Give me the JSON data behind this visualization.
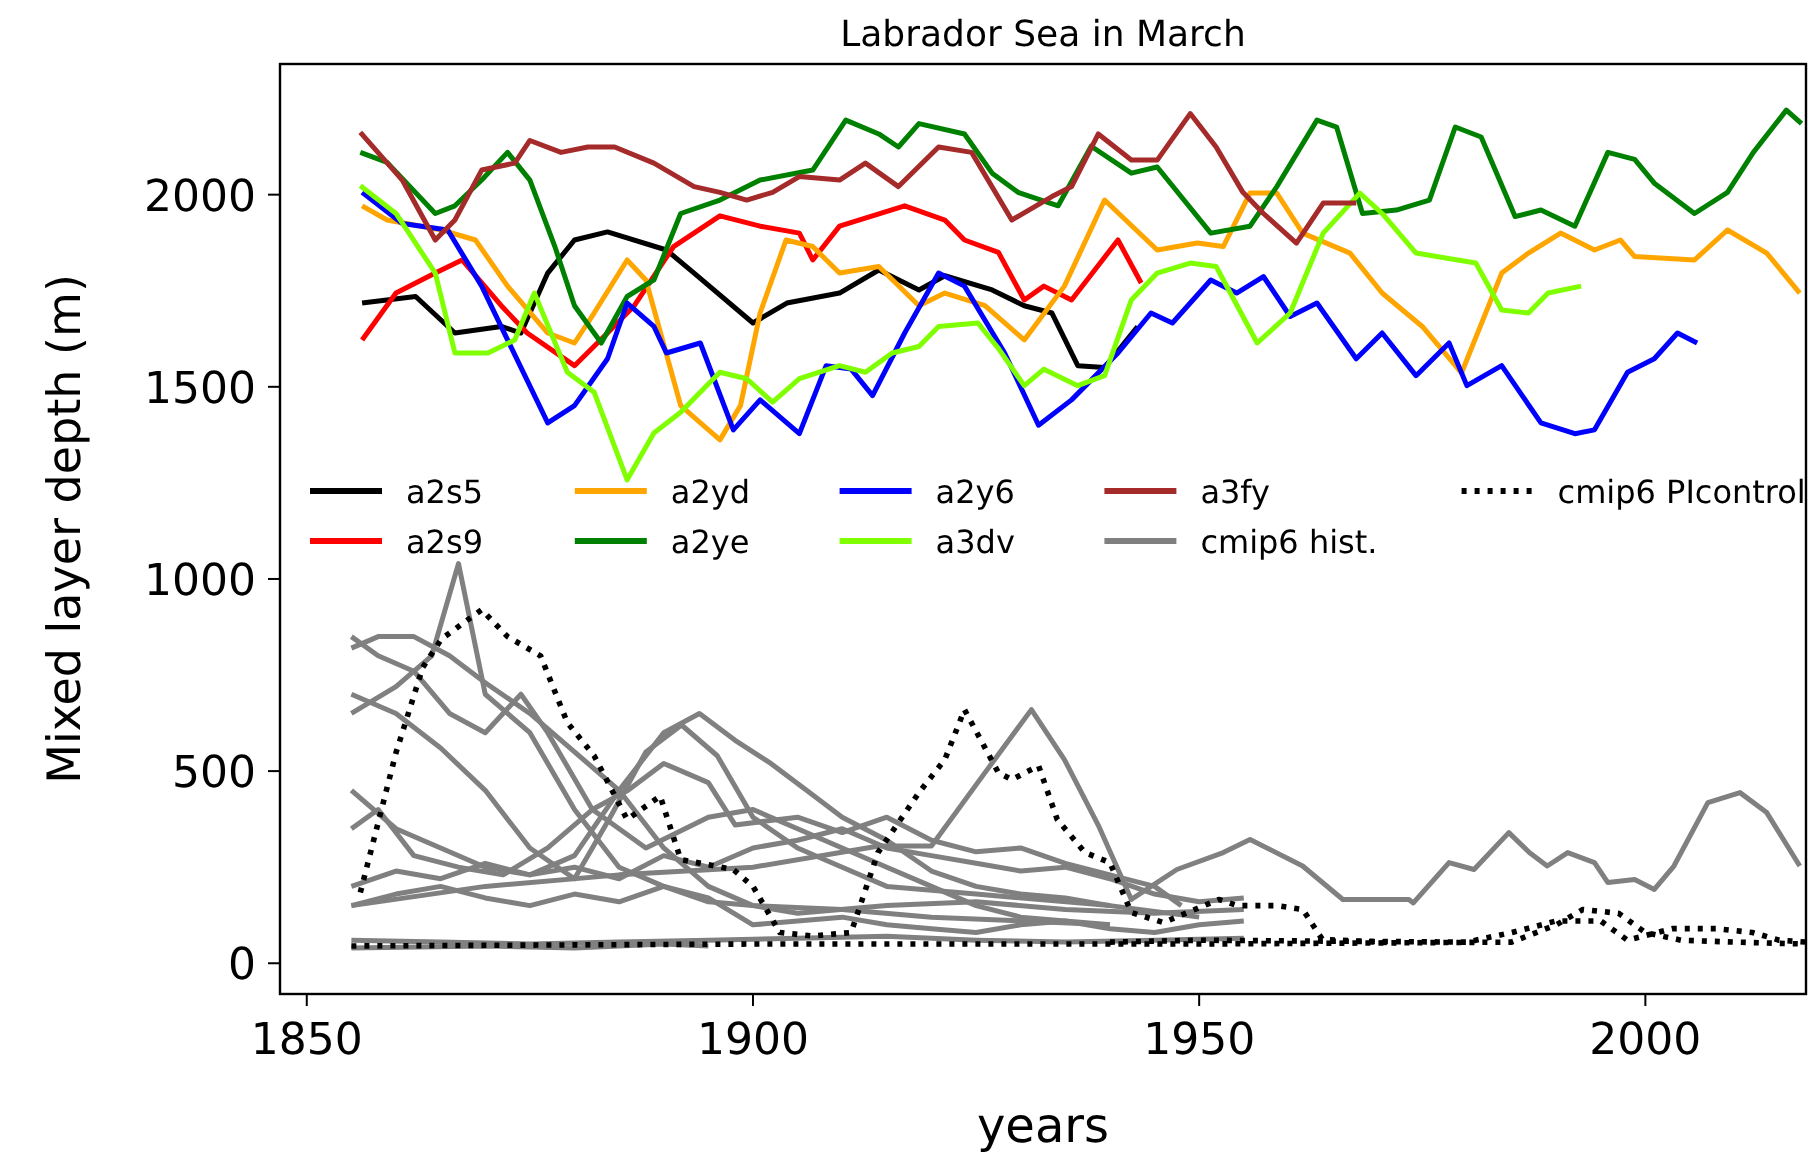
{
  "chart_data": {
    "type": "line",
    "title": "Labrador Sea in March",
    "xlabel": "years",
    "ylabel": "Mixed layer depth (m)",
    "xlim": [
      1847,
      2018
    ],
    "ylim": [
      -80,
      2340
    ],
    "xticks": [
      1850,
      1900,
      1950,
      2000
    ],
    "yticks": [
      0,
      500,
      1000,
      1500,
      2000
    ],
    "legend": "center left",
    "series": [
      {
        "name": "a2s5",
        "color": "#000000",
        "line_style": "solid",
        "x": [
          1856.2,
          1862.2,
          1866.6,
          1871.8,
          1874,
          1877,
          1880,
          1883.7,
          1890.3,
          1893.4,
          1900,
          1903.8,
          1909.7,
          1914.1,
          1918.6,
          1921.5,
          1926.8,
          1930.4,
          1933.5,
          1936.4,
          1939.4,
          1943.1
        ],
        "values": [
          1718,
          1735,
          1640,
          1657,
          1640,
          1796,
          1882,
          1903,
          1856,
          1796,
          1666,
          1718,
          1744,
          1804,
          1752,
          1789,
          1752,
          1711,
          1692,
          1555,
          1550,
          1657
        ]
      },
      {
        "name": "a2s9",
        "color": "#ff0000",
        "line_style": "solid",
        "x": [
          1856.2,
          1860,
          1864.4,
          1867.4,
          1871.8,
          1874.7,
          1880,
          1883.7,
          1886.7,
          1891.1,
          1896.3,
          1900.8,
          1905.2,
          1906.7,
          1909.7,
          1917,
          1921.5,
          1923.7,
          1927.5,
          1930.4,
          1932.6,
          1935.7,
          1940.9,
          1943.5
        ],
        "values": [
          1622,
          1744,
          1796,
          1830,
          1711,
          1640,
          1555,
          1640,
          1711,
          1865,
          1945,
          1918,
          1900,
          1830,
          1918,
          1971,
          1934,
          1882,
          1850,
          1726,
          1762,
          1726,
          1882,
          1770
        ]
      },
      {
        "name": "a2yd",
        "color": "#ffa500",
        "line_style": "solid",
        "x": [
          1856.2,
          1859,
          1865.1,
          1868.9,
          1872.5,
          1877,
          1880,
          1882.2,
          1885.9,
          1888,
          1891.9,
          1896.3,
          1898.6,
          1900.8,
          1903.7,
          1906.7,
          1909.7,
          1914.1,
          1918.6,
          1921.5,
          1926,
          1930.4,
          1934.9,
          1939.4,
          1945.3,
          1949.8,
          1952.7,
          1955.7,
          1958.7,
          1961.6,
          1966.9,
          1970.5,
          1975,
          1979.4,
          1983.9,
          1986.9,
          1990.5,
          1994.3,
          1997.2,
          1998.8,
          2005.5,
          2009.2,
          2013.6,
          2017.3
        ],
        "values": [
          1971,
          1934,
          1908,
          1882,
          1762,
          1640,
          1614,
          1692,
          1830,
          1778,
          1451,
          1362,
          1451,
          1692,
          1882,
          1865,
          1796,
          1813,
          1711,
          1744,
          1711,
          1622,
          1762,
          1986,
          1856,
          1874,
          1865,
          2004,
          2004,
          1900,
          1848,
          1744,
          1657,
          1536,
          1796,
          1848,
          1900,
          1856,
          1882,
          1839,
          1830,
          1908,
          1848,
          1744
        ]
      },
      {
        "name": "a2ye",
        "color": "#008000",
        "line_style": "solid",
        "x": [
          1856,
          1859,
          1864.4,
          1866.6,
          1869.6,
          1872.5,
          1875,
          1877.8,
          1880,
          1883,
          1885.9,
          1888.9,
          1891.9,
          1896.3,
          1900.8,
          1906.7,
          1910.4,
          1914.1,
          1916.3,
          1918.6,
          1923.7,
          1926.8,
          1929.7,
          1934.2,
          1937.9,
          1942.4,
          1945.3,
          1951.3,
          1955.7,
          1958.7,
          1963.2,
          1965.4,
          1968.3,
          1972.1,
          1975.8,
          1978.7,
          1981.6,
          1985.4,
          1988.3,
          1992.1,
          1995.8,
          1998.8,
          2001,
          2005.5,
          2009.2,
          2012.1,
          2015.8,
          2017.5
        ],
        "values": [
          2110,
          2084,
          1951,
          1971,
          2038,
          2110,
          2038,
          1865,
          1711,
          1614,
          1735,
          1778,
          1951,
          1986,
          2038,
          2064,
          2194,
          2158,
          2124,
          2185,
          2158,
          2056,
          2006,
          1971,
          2126,
          2056,
          2072,
          1900,
          1918,
          2021,
          2194,
          2176,
          1951,
          1960,
          1986,
          2176,
          2150,
          1943,
          1960,
          1918,
          2110,
          2092,
          2030,
          1951,
          2006,
          2110,
          2220,
          2185
        ]
      },
      {
        "name": "a2y6",
        "color": "#0000ff",
        "line_style": "solid",
        "x": [
          1856.2,
          1860.7,
          1865.8,
          1869.6,
          1872.5,
          1877,
          1880,
          1883.7,
          1885.9,
          1888.9,
          1890.3,
          1894.1,
          1897.8,
          1900.8,
          1905.2,
          1908.2,
          1911,
          1913.4,
          1917,
          1920.8,
          1923.7,
          1928.2,
          1932,
          1935.7,
          1940.9,
          1944.6,
          1947,
          1951.3,
          1954.2,
          1957.2,
          1960.2,
          1963.2,
          1967.6,
          1970.5,
          1974.3,
          1978,
          1980,
          1983.9,
          1988.3,
          1992.1,
          1994.3,
          1998,
          2001,
          2003.6,
          2005.8
        ],
        "values": [
          2006,
          1925,
          1908,
          1762,
          1622,
          1406,
          1451,
          1573,
          1718,
          1657,
          1588,
          1614,
          1388,
          1466,
          1378,
          1555,
          1546,
          1477,
          1640,
          1796,
          1762,
          1588,
          1400,
          1466,
          1588,
          1692,
          1666,
          1778,
          1744,
          1787,
          1683,
          1718,
          1573,
          1640,
          1529,
          1614,
          1503,
          1555,
          1406,
          1378,
          1388,
          1538,
          1573,
          1640,
          1614
        ]
      },
      {
        "name": "a3dv",
        "color": "#7fff00",
        "line_style": "solid",
        "x": [
          1856,
          1860,
          1864.4,
          1866.6,
          1870.3,
          1873.3,
          1875.5,
          1879.2,
          1882.2,
          1885.9,
          1888.9,
          1891.9,
          1894.8,
          1896.3,
          1899.3,
          1902.2,
          1905.2,
          1909.7,
          1912.6,
          1915.6,
          1918.6,
          1920.8,
          1925.2,
          1927.5,
          1930.4,
          1932.6,
          1936.4,
          1939.4,
          1942.4,
          1945.3,
          1949,
          1951.9,
          1956.5,
          1960.2,
          1963.9,
          1968,
          1970.5,
          1974.3,
          1981,
          1983.9,
          1986.9,
          1989.1,
          1992.8
        ],
        "values": [
          2023,
          1951,
          1796,
          1588,
          1588,
          1622,
          1744,
          1538,
          1486,
          1258,
          1380,
          1434,
          1503,
          1538,
          1521,
          1460,
          1521,
          1555,
          1538,
          1588,
          1605,
          1657,
          1666,
          1600,
          1503,
          1546,
          1503,
          1529,
          1726,
          1796,
          1822,
          1813,
          1614,
          1692,
          1900,
          2004,
          1951,
          1848,
          1822,
          1700,
          1692,
          1744,
          1762
        ]
      },
      {
        "name": "a3fy",
        "color": "#a52a2a",
        "line_style": "solid",
        "x": [
          1856,
          1860.7,
          1864.4,
          1866.6,
          1869.6,
          1873.3,
          1875,
          1878.5,
          1881.5,
          1884.5,
          1888.9,
          1893.4,
          1896.3,
          1899.3,
          1902.2,
          1905.2,
          1909.7,
          1912.6,
          1916.3,
          1920.8,
          1924.5,
          1929,
          1933.5,
          1935.7,
          1938.7,
          1942.4,
          1945.3,
          1949,
          1951.9,
          1954.9,
          1957.2,
          1960.9,
          1963.9,
          1967.6
        ],
        "values": [
          2162,
          2038,
          1882,
          1934,
          2064,
          2082,
          2141,
          2110,
          2124,
          2124,
          2082,
          2021,
          2006,
          1986,
          2006,
          2047,
          2038,
          2082,
          2021,
          2124,
          2110,
          1934,
          1995,
          2021,
          2158,
          2090,
          2090,
          2211,
          2124,
          2006,
          1951,
          1874,
          1978,
          1978
        ]
      },
      {
        "name": "cmip6 hist.",
        "color": "#808080",
        "line_style": "solid",
        "x": [
          1855,
          1870,
          1885,
          1900,
          1914.1,
          1920,
          1926,
          1931.2,
          1934.9,
          1938.7,
          1942.4,
          1947.5,
          1952.7,
          1955.7,
          1961.6,
          1966.1,
          1973.5,
          1974,
          1978,
          1980.8,
          1984.7,
          1987,
          1989,
          1991.3,
          1994.3,
          1995.8,
          1998.8,
          2001,
          2003.2,
          2007,
          2010.6,
          2013.6,
          2017.3
        ],
        "values": [
          150,
          200,
          230,
          250,
          305,
          305,
          496,
          660,
          530,
          359,
          166,
          244,
          288,
          322,
          253,
          166,
          166,
          157,
          262,
          244,
          340,
          288,
          253,
          288,
          262,
          210,
          218,
          192,
          253,
          418,
          444,
          392,
          253
        ]
      },
      {
        "color": "#808080",
        "line_style": "solid",
        "x": [
          1855,
          1860,
          1864,
          1867,
          1870,
          1875,
          1880,
          1885,
          1890,
          1895,
          1900,
          1910,
          1920,
          1930,
          1940
        ],
        "values": [
          650,
          720,
          800,
          1040,
          700,
          600,
          400,
          250,
          200,
          160,
          150,
          140,
          120,
          110,
          100
        ]
      },
      {
        "color": "#808080",
        "line_style": "solid",
        "x": [
          1855,
          1858,
          1862,
          1866,
          1870,
          1874,
          1877,
          1882,
          1888,
          1895,
          1900,
          1905,
          1910,
          1915,
          1920,
          1925,
          1930,
          1940
        ],
        "values": [
          850,
          800,
          760,
          650,
          600,
          700,
          600,
          400,
          300,
          380,
          400,
          350,
          300,
          250,
          200,
          150,
          120,
          100
        ]
      },
      {
        "color": "#808080",
        "line_style": "solid",
        "x": [
          1855,
          1858,
          1862,
          1866,
          1870,
          1875,
          1880,
          1885,
          1890,
          1895,
          1900,
          1905,
          1915,
          1925,
          1935,
          1945,
          1955
        ],
        "values": [
          820,
          850,
          850,
          800,
          730,
          650,
          550,
          450,
          300,
          200,
          150,
          130,
          150,
          160,
          140,
          130,
          140
        ]
      },
      {
        "color": "#808080",
        "line_style": "solid",
        "x": [
          1855,
          1860,
          1865,
          1870,
          1875,
          1880,
          1884,
          1888,
          1892,
          1896,
          1900,
          1905,
          1910,
          1915,
          1925,
          1940,
          1950
        ],
        "values": [
          700,
          650,
          560,
          450,
          300,
          220,
          380,
          550,
          620,
          540,
          380,
          300,
          250,
          200,
          180,
          150,
          120
        ]
      },
      {
        "color": "#808080",
        "line_style": "solid",
        "x": [
          1855,
          1860,
          1865,
          1870,
          1875,
          1880,
          1885,
          1890,
          1894,
          1898,
          1902,
          1906,
          1910,
          1915,
          1920,
          1925,
          1930,
          1935,
          1940
        ],
        "values": [
          450,
          350,
          300,
          250,
          230,
          280,
          450,
          600,
          650,
          580,
          520,
          450,
          380,
          320,
          240,
          200,
          180,
          170,
          150
        ]
      },
      {
        "color": "#808080",
        "line_style": "solid",
        "x": [
          1855,
          1858,
          1862,
          1867,
          1872,
          1877,
          1882,
          1886,
          1890,
          1895,
          1898,
          1905,
          1910,
          1915,
          1920,
          1925,
          1930,
          1935,
          1940,
          1945,
          1948
        ],
        "values": [
          350,
          400,
          280,
          250,
          230,
          300,
          400,
          450,
          520,
          470,
          360,
          380,
          340,
          380,
          320,
          290,
          300,
          260,
          230,
          200,
          150
        ]
      },
      {
        "color": "#808080",
        "line_style": "solid",
        "x": [
          1855,
          1860,
          1865,
          1870,
          1875,
          1880,
          1885,
          1890,
          1895,
          1900,
          1905,
          1910,
          1915,
          1920,
          1925,
          1930,
          1935,
          1940,
          1945,
          1950,
          1955
        ],
        "values": [
          200,
          240,
          220,
          260,
          230,
          250,
          220,
          280,
          250,
          300,
          320,
          350,
          300,
          280,
          260,
          240,
          250,
          220,
          180,
          160,
          170
        ]
      },
      {
        "color": "#808080",
        "line_style": "solid",
        "x": [
          1855,
          1860,
          1865,
          1870,
          1875,
          1880,
          1885,
          1890,
          1895,
          1900,
          1905,
          1910,
          1915,
          1920,
          1925,
          1930,
          1935,
          1940,
          1945,
          1950,
          1955
        ],
        "values": [
          150,
          180,
          200,
          170,
          150,
          180,
          160,
          200,
          170,
          100,
          110,
          120,
          100,
          90,
          80,
          100,
          110,
          90,
          80,
          100,
          110
        ]
      },
      {
        "color": "#808080",
        "line_style": "solid",
        "x": [
          1855,
          1865,
          1875,
          1885,
          1895,
          1905,
          1915,
          1925,
          1935,
          1945,
          1955
        ],
        "values": [
          60,
          55,
          50,
          55,
          60,
          65,
          70,
          60,
          55,
          60,
          65
        ]
      },
      {
        "color": "#808080",
        "line_style": "solid",
        "x": [
          1855,
          1870,
          1880,
          1890,
          1895
        ],
        "values": [
          40,
          45,
          40,
          50,
          45
        ]
      },
      {
        "name": "cmip6 PIcontrol",
        "color": "#000000",
        "line_style": "dotted",
        "x": [
          1856,
          1860,
          1863,
          1865.1,
          1869.6,
          1872.5,
          1876.2,
          1879.2,
          1882.2,
          1885.9,
          1889.6,
          1891.9,
          1897.8,
          1900,
          1903,
          1906.7,
          1911,
          1914,
          1918.6,
          1921.5,
          1923.7,
          1927.5,
          1929,
          1932,
          1934.1,
          1937.2,
          1940,
          1942.4,
          1946,
          1952.2,
          1954.3,
          1958.7,
          1961.6,
          1963.8,
          1972
        ],
        "values": [
          184,
          548,
          770,
          844,
          920,
          850,
          800,
          626,
          540,
          374,
          435,
          270,
          244,
          200,
          80,
          71,
          80,
          288,
          444,
          530,
          660,
          496,
          478,
          514,
          374,
          288,
          262,
          132,
          106,
          166,
          150,
          150,
          140,
          62,
          53
        ]
      },
      {
        "color": "#000000",
        "line_style": "dotted",
        "x": [
          1855,
          1900,
          1950,
          1985,
          1990,
          1993,
          1997,
          2000,
          2004,
          2010,
          2018
        ],
        "values": [
          45,
          50,
          50,
          55,
          100,
          140,
          130,
          80,
          60,
          55,
          50
        ]
      },
      {
        "color": "#000000",
        "line_style": "dotted",
        "x": [
          1940,
          1950,
          1980,
          1985,
          1990,
          1995,
          1998,
          2003,
          2008,
          2012,
          2015,
          2018
        ],
        "values": [
          55,
          60,
          55,
          80,
          110,
          110,
          60,
          90,
          90,
          80,
          60,
          55
        ]
      }
    ]
  }
}
